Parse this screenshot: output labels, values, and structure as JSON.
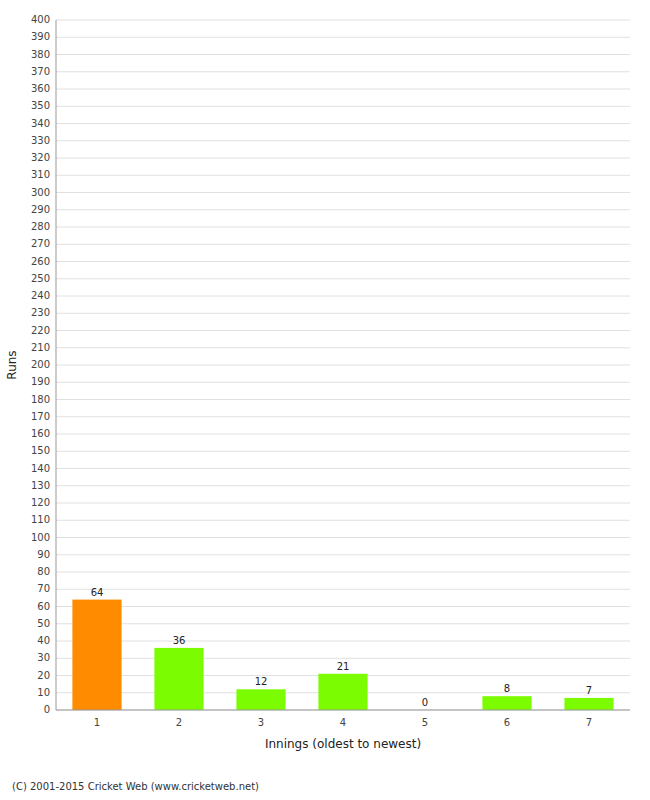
{
  "chart_data": {
    "type": "bar",
    "categories": [
      "1",
      "2",
      "3",
      "4",
      "5",
      "6",
      "7"
    ],
    "values": [
      64,
      36,
      12,
      21,
      0,
      8,
      7
    ],
    "colors": [
      "#ff8c00",
      "#7cfc00",
      "#7cfc00",
      "#7cfc00",
      "#7cfc00",
      "#7cfc00",
      "#7cfc00"
    ],
    "x_label": "Innings (oldest to newest)",
    "y_label": "Runs",
    "ylim": [
      0,
      400
    ],
    "yticks": [
      0,
      10,
      20,
      30,
      40,
      50,
      60,
      70,
      80,
      90,
      100,
      110,
      120,
      130,
      140,
      150,
      160,
      170,
      180,
      190,
      200,
      210,
      220,
      230,
      240,
      250,
      260,
      270,
      280,
      290,
      300,
      310,
      320,
      330,
      340,
      350,
      360,
      370,
      380,
      390,
      400
    ],
    "grid": true,
    "data_labels": true,
    "annotations": [
      "(C) 2001-2015 Cricket Web (www.cricketweb.net)"
    ]
  }
}
